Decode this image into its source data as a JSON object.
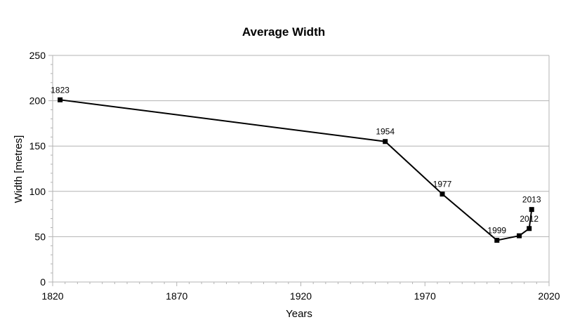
{
  "chart_data": {
    "type": "line",
    "title": "Average Width",
    "xlabel": "Years",
    "ylabel": "Width [metres]",
    "xlim": [
      1820,
      2020
    ],
    "ylim": [
      0,
      250
    ],
    "x_ticks": [
      "1820",
      "1870",
      "1920",
      "1970",
      "2020"
    ],
    "y_ticks": [
      "0",
      "50",
      "100",
      "150",
      "200",
      "250"
    ],
    "grid": true,
    "legend": "none",
    "series": [
      {
        "x": [
          1823,
          1954,
          1977,
          1999,
          2008,
          2012,
          2013
        ],
        "y": [
          201,
          155,
          97,
          46,
          51,
          59,
          80
        ],
        "labels": [
          "1823",
          "1954",
          "1977",
          "1999",
          "",
          "2012",
          "2013"
        ]
      }
    ],
    "colors": {
      "line": "#000000",
      "grid": "#b3b3b3",
      "axis": "#b3b3b3"
    }
  }
}
